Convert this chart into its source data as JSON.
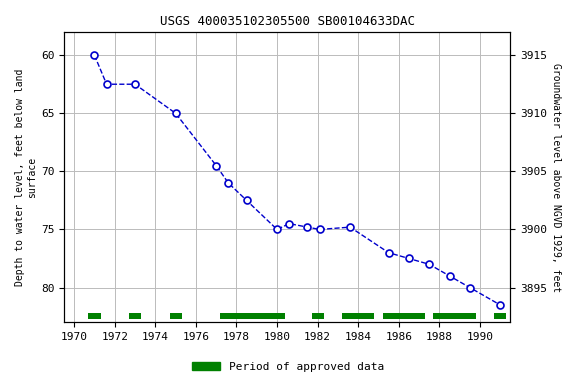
{
  "title": "USGS 400035102305500 SB00104633DAC",
  "ylabel_left": "Depth to water level, feet below land\nsurface",
  "ylabel_right": "Groundwater level above NGVD 1929, feet",
  "years": [
    1971.0,
    1971.6,
    1973.0,
    1975.0,
    1977.0,
    1977.6,
    1978.5,
    1980.0,
    1980.6,
    1981.5,
    1982.1,
    1983.6,
    1985.5,
    1986.5,
    1987.5,
    1988.5,
    1989.5,
    1991.0
  ],
  "depth": [
    60.0,
    62.5,
    62.5,
    65.0,
    69.5,
    71.0,
    72.5,
    75.0,
    74.5,
    74.8,
    75.0,
    74.8,
    77.0,
    77.5,
    78.0,
    79.0,
    80.0,
    81.5
  ],
  "ylim_left": [
    83,
    58
  ],
  "ylim_right": [
    3892,
    3917
  ],
  "xlim": [
    1969.5,
    1991.5
  ],
  "xticks": [
    1970,
    1972,
    1974,
    1976,
    1978,
    1980,
    1982,
    1984,
    1986,
    1988,
    1990
  ],
  "yticks_left": [
    60,
    65,
    70,
    75,
    80
  ],
  "yticks_right": [
    3895,
    3900,
    3905,
    3910,
    3915
  ],
  "line_color": "#0000cc",
  "marker_color": "#0000cc",
  "background_color": "#ffffff",
  "grid_color": "#bbbbbb",
  "approved_periods": [
    [
      1970.7,
      1971.3
    ],
    [
      1972.7,
      1973.3
    ],
    [
      1974.7,
      1975.3
    ],
    [
      1977.2,
      1980.4
    ],
    [
      1981.7,
      1982.3
    ],
    [
      1983.2,
      1984.8
    ],
    [
      1985.2,
      1987.3
    ],
    [
      1987.7,
      1989.8
    ],
    [
      1990.7,
      1991.3
    ]
  ],
  "approved_color": "#008000",
  "legend_label": "Period of approved data"
}
